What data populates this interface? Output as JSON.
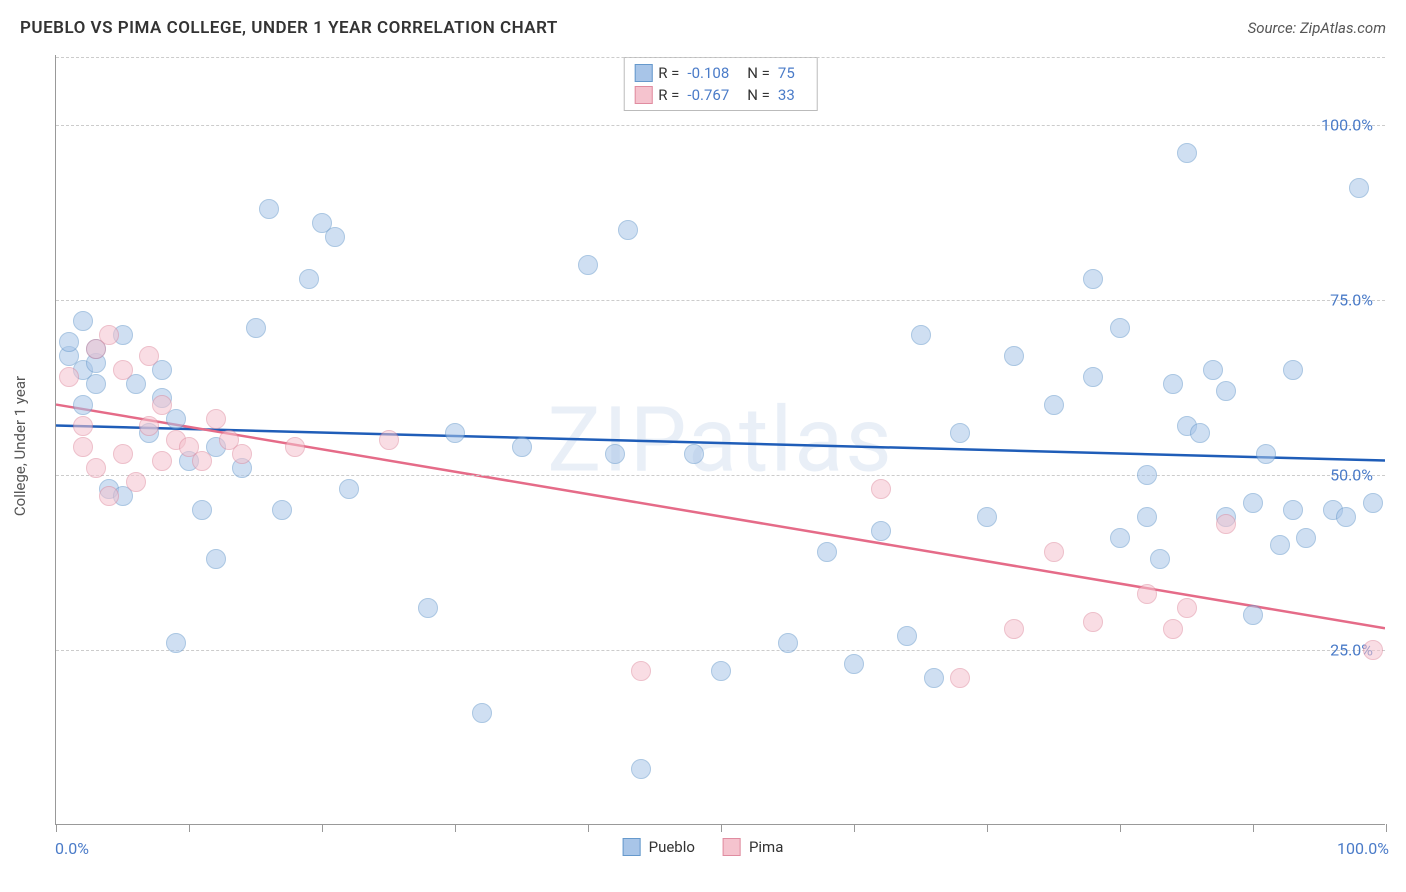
{
  "title": "PUEBLO VS PIMA COLLEGE, UNDER 1 YEAR CORRELATION CHART",
  "source": "Source: ZipAtlas.com",
  "ylabel": "College, Under 1 year",
  "watermark": "ZIPatlas",
  "chart": {
    "type": "scatter",
    "xlim": [
      0,
      100
    ],
    "ylim": [
      0,
      110
    ],
    "xticks": [
      0,
      10,
      20,
      30,
      40,
      50,
      60,
      70,
      80,
      90,
      100
    ],
    "xtick_labels": {
      "0": "0.0%",
      "100": "100.0%"
    },
    "yticks": [
      25,
      50,
      75,
      100
    ],
    "ytick_labels": [
      "25.0%",
      "50.0%",
      "75.0%",
      "100.0%"
    ],
    "background_color": "#ffffff",
    "grid_color": "#cccccc",
    "grid_dash": true,
    "axis_color": "#999999",
    "marker_radius": 10,
    "marker_opacity": 0.55,
    "series": [
      {
        "name": "Pueblo",
        "marker_fill": "#a8c5e8",
        "marker_stroke": "#6699cc",
        "trend_color": "#1f5db8",
        "trend_width": 2.5,
        "trend": {
          "x1": 0,
          "y1": 57,
          "x2": 100,
          "y2": 52
        },
        "r": "-0.108",
        "n": "75",
        "points": [
          [
            1,
            67
          ],
          [
            1,
            69
          ],
          [
            2,
            65
          ],
          [
            2,
            72
          ],
          [
            2,
            60
          ],
          [
            3,
            66
          ],
          [
            3,
            68
          ],
          [
            3,
            63
          ],
          [
            4,
            48
          ],
          [
            5,
            70
          ],
          [
            5,
            47
          ],
          [
            6,
            63
          ],
          [
            7,
            56
          ],
          [
            8,
            61
          ],
          [
            8,
            65
          ],
          [
            9,
            26
          ],
          [
            9,
            58
          ],
          [
            10,
            52
          ],
          [
            11,
            45
          ],
          [
            12,
            54
          ],
          [
            12,
            38
          ],
          [
            14,
            51
          ],
          [
            15,
            71
          ],
          [
            16,
            88
          ],
          [
            17,
            45
          ],
          [
            19,
            78
          ],
          [
            20,
            86
          ],
          [
            21,
            84
          ],
          [
            22,
            48
          ],
          [
            28,
            31
          ],
          [
            30,
            56
          ],
          [
            32,
            16
          ],
          [
            35,
            54
          ],
          [
            40,
            80
          ],
          [
            42,
            53
          ],
          [
            43,
            85
          ],
          [
            44,
            8
          ],
          [
            48,
            53
          ],
          [
            50,
            22
          ],
          [
            55,
            26
          ],
          [
            58,
            39
          ],
          [
            60,
            23
          ],
          [
            62,
            42
          ],
          [
            64,
            27
          ],
          [
            65,
            70
          ],
          [
            66,
            21
          ],
          [
            68,
            56
          ],
          [
            70,
            44
          ],
          [
            72,
            67
          ],
          [
            75,
            60
          ],
          [
            78,
            64
          ],
          [
            78,
            78
          ],
          [
            80,
            41
          ],
          [
            80,
            71
          ],
          [
            82,
            44
          ],
          [
            82,
            50
          ],
          [
            83,
            38
          ],
          [
            84,
            63
          ],
          [
            85,
            57
          ],
          [
            85,
            96
          ],
          [
            86,
            56
          ],
          [
            87,
            65
          ],
          [
            88,
            62
          ],
          [
            88,
            44
          ],
          [
            90,
            30
          ],
          [
            90,
            46
          ],
          [
            91,
            53
          ],
          [
            92,
            40
          ],
          [
            93,
            45
          ],
          [
            93,
            65
          ],
          [
            94,
            41
          ],
          [
            96,
            45
          ],
          [
            97,
            44
          ],
          [
            98,
            91
          ],
          [
            99,
            46
          ]
        ]
      },
      {
        "name": "Pima",
        "marker_fill": "#f5c3ce",
        "marker_stroke": "#e08ca0",
        "trend_color": "#e56b88",
        "trend_width": 2.5,
        "trend": {
          "x1": 0,
          "y1": 60,
          "x2": 100,
          "y2": 28
        },
        "r": "-0.767",
        "n": "33",
        "points": [
          [
            1,
            64
          ],
          [
            2,
            54
          ],
          [
            2,
            57
          ],
          [
            3,
            51
          ],
          [
            3,
            68
          ],
          [
            4,
            70
          ],
          [
            4,
            47
          ],
          [
            5,
            65
          ],
          [
            5,
            53
          ],
          [
            6,
            49
          ],
          [
            7,
            67
          ],
          [
            7,
            57
          ],
          [
            8,
            60
          ],
          [
            8,
            52
          ],
          [
            9,
            55
          ],
          [
            10,
            54
          ],
          [
            11,
            52
          ],
          [
            12,
            58
          ],
          [
            13,
            55
          ],
          [
            14,
            53
          ],
          [
            18,
            54
          ],
          [
            25,
            55
          ],
          [
            44,
            22
          ],
          [
            62,
            48
          ],
          [
            68,
            21
          ],
          [
            72,
            28
          ],
          [
            75,
            39
          ],
          [
            78,
            29
          ],
          [
            82,
            33
          ],
          [
            84,
            28
          ],
          [
            85,
            31
          ],
          [
            88,
            43
          ],
          [
            99,
            25
          ]
        ]
      }
    ]
  },
  "legend_bottom": [
    {
      "label": "Pueblo",
      "fill": "#a8c5e8",
      "stroke": "#6699cc"
    },
    {
      "label": "Pima",
      "fill": "#f5c3ce",
      "stroke": "#e08ca0"
    }
  ]
}
